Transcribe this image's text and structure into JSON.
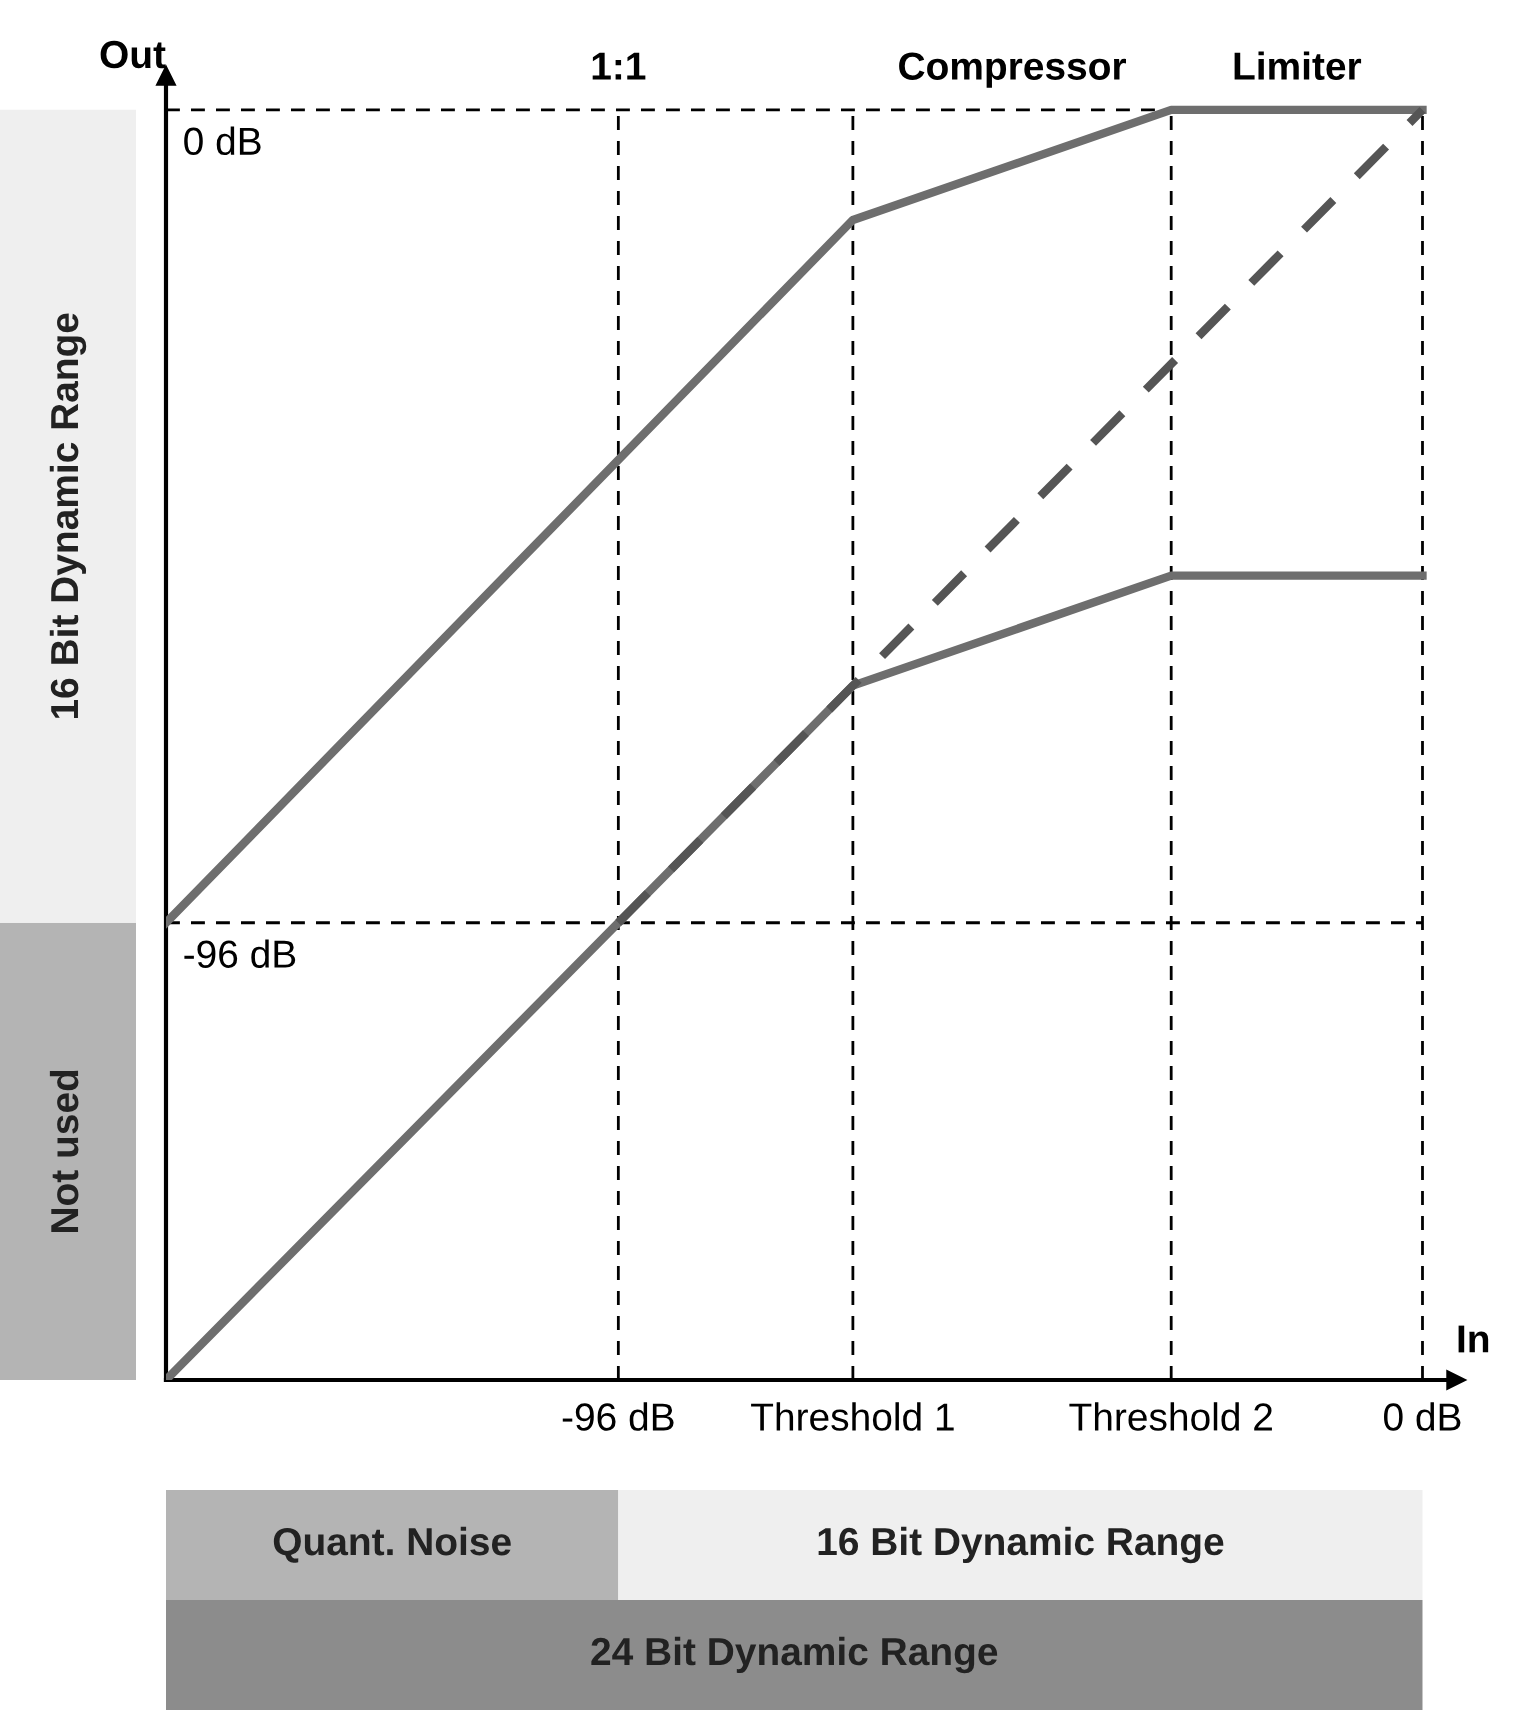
{
  "chart_data": {
    "type": "line",
    "xlabel": "In",
    "ylabel": "Out",
    "xlim": [
      -150,
      4
    ],
    "ylim": [
      -150,
      4
    ],
    "xticks": [
      {
        "value": -96,
        "label": "-96 dB"
      },
      {
        "value": -68,
        "label": "Threshold 1"
      },
      {
        "value": -30,
        "label": "Threshold 2"
      },
      {
        "value": 0,
        "label": "0 dB"
      }
    ],
    "yticks": [
      {
        "value": -96,
        "label": "-96 dB"
      },
      {
        "value": 0,
        "label": "0 dB"
      }
    ],
    "series": [
      {
        "color": "#6e6e6e",
        "line_style": "solid",
        "x": [
          -150,
          -68,
          -30,
          0
        ],
        "values": [
          -96,
          -13,
          0,
          0
        ]
      },
      {
        "color": "#6e6e6e",
        "line_style": "solid",
        "x": [
          -150,
          -68,
          -30,
          0
        ],
        "values": [
          -150,
          -68,
          -55,
          -55
        ]
      },
      {
        "color": "#555555",
        "line_style": "dashed",
        "x": [
          -96,
          0
        ],
        "values": [
          -96,
          0
        ]
      }
    ],
    "ref_lines": [
      {
        "axis": "x",
        "value": -96,
        "color": "#000000",
        "line_style": "dashed"
      },
      {
        "axis": "x",
        "value": -68,
        "color": "#000000",
        "line_style": "dashed"
      },
      {
        "axis": "x",
        "value": -30,
        "color": "#000000",
        "line_style": "dashed"
      },
      {
        "axis": "x",
        "value": 0,
        "color": "#000000",
        "line_style": "dashed"
      },
      {
        "axis": "y",
        "value": 0,
        "color": "#000000",
        "line_style": "dashed"
      },
      {
        "axis": "y",
        "value": -96,
        "color": "#000000",
        "line_style": "dashed"
      }
    ],
    "annotations": [
      {
        "text": "1:1",
        "x": -96,
        "y": 0
      },
      {
        "text": "Compressor",
        "x": -49,
        "y": 0
      },
      {
        "text": "Limiter",
        "x": -15,
        "y": 0
      },
      "Not used",
      "16 Bit Dynamic Range",
      "Quant. Noise",
      "16 Bit Dynamic Range",
      "24 Bit Dynamic Range"
    ],
    "legend": false,
    "grid": false
  }
}
